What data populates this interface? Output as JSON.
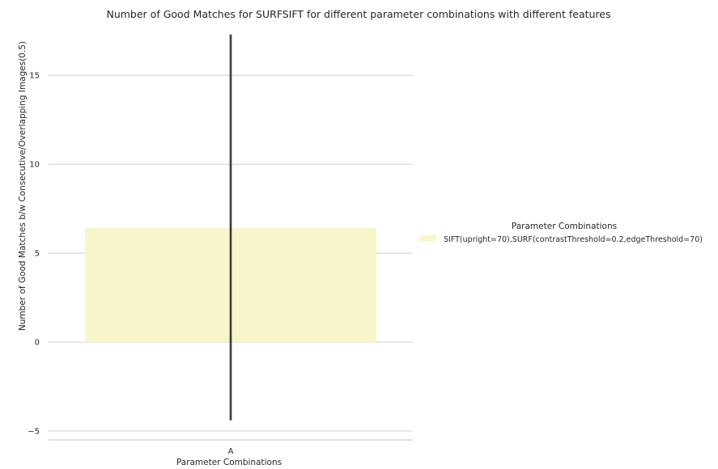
{
  "chart_data": {
    "type": "bar",
    "title": "Number of Good Matches for SURFSIFT for different parameter combinations with different features",
    "xlabel": "Parameter Combinations",
    "ylabel": "Number of Good Matches b/w Consecutive/Overlapping Images(0.5)",
    "categories": [
      "A"
    ],
    "series": [
      {
        "name": "SIFT(upright=70),SURF(contrastThreshold=0.2,edgeThreshold=70)",
        "values": [
          6.4
        ],
        "error_low": [
          -4.4
        ],
        "error_high": [
          17.3
        ],
        "color": "#f7f6cb"
      }
    ],
    "ylim": [
      -5.5,
      17.6
    ],
    "yticks": [
      -5,
      0,
      5,
      10,
      15
    ],
    "ytick_labels": [
      "−5",
      "0",
      "5",
      "10",
      "15"
    ],
    "grid": true,
    "legend": {
      "title": "Parameter Combinations",
      "placement": "right"
    },
    "colors": {
      "grid": "#cccccc",
      "errorbar": "#3f3f3f",
      "axis": "#bfbfbf"
    }
  }
}
